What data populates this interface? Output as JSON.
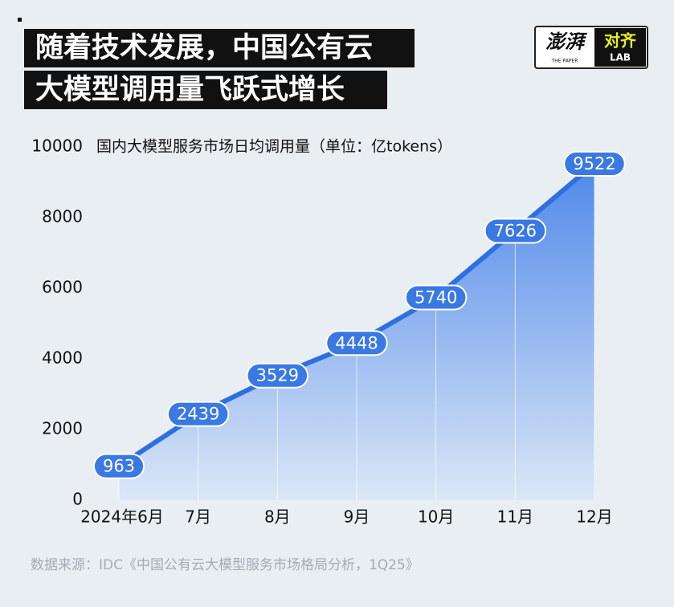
{
  "title_lines": [
    "随着技术发展，中国公有云",
    "大模型调用量飞跃式增长"
  ],
  "logo": {
    "brand": "澎湃",
    "brand_sub": "THE PAPER",
    "lab": "对齐",
    "lab_sub": "LAB"
  },
  "chart_data": {
    "type": "area",
    "y_label": "国内大模型服务市场日均调用量（单位：亿tokens）",
    "categories": [
      "2024年6月",
      "7月",
      "8月",
      "9月",
      "10月",
      "11月",
      "12月"
    ],
    "values": [
      963,
      2439,
      3529,
      4448,
      5740,
      7626,
      9522
    ],
    "color": "#2f6fdf",
    "ylim": [
      0,
      10000
    ],
    "yticks": [
      0,
      2000,
      4000,
      6000,
      8000,
      10000
    ],
    "source": "数据来源：IDC《中国公有云大模型服务市场格局分析，1Q25》"
  }
}
